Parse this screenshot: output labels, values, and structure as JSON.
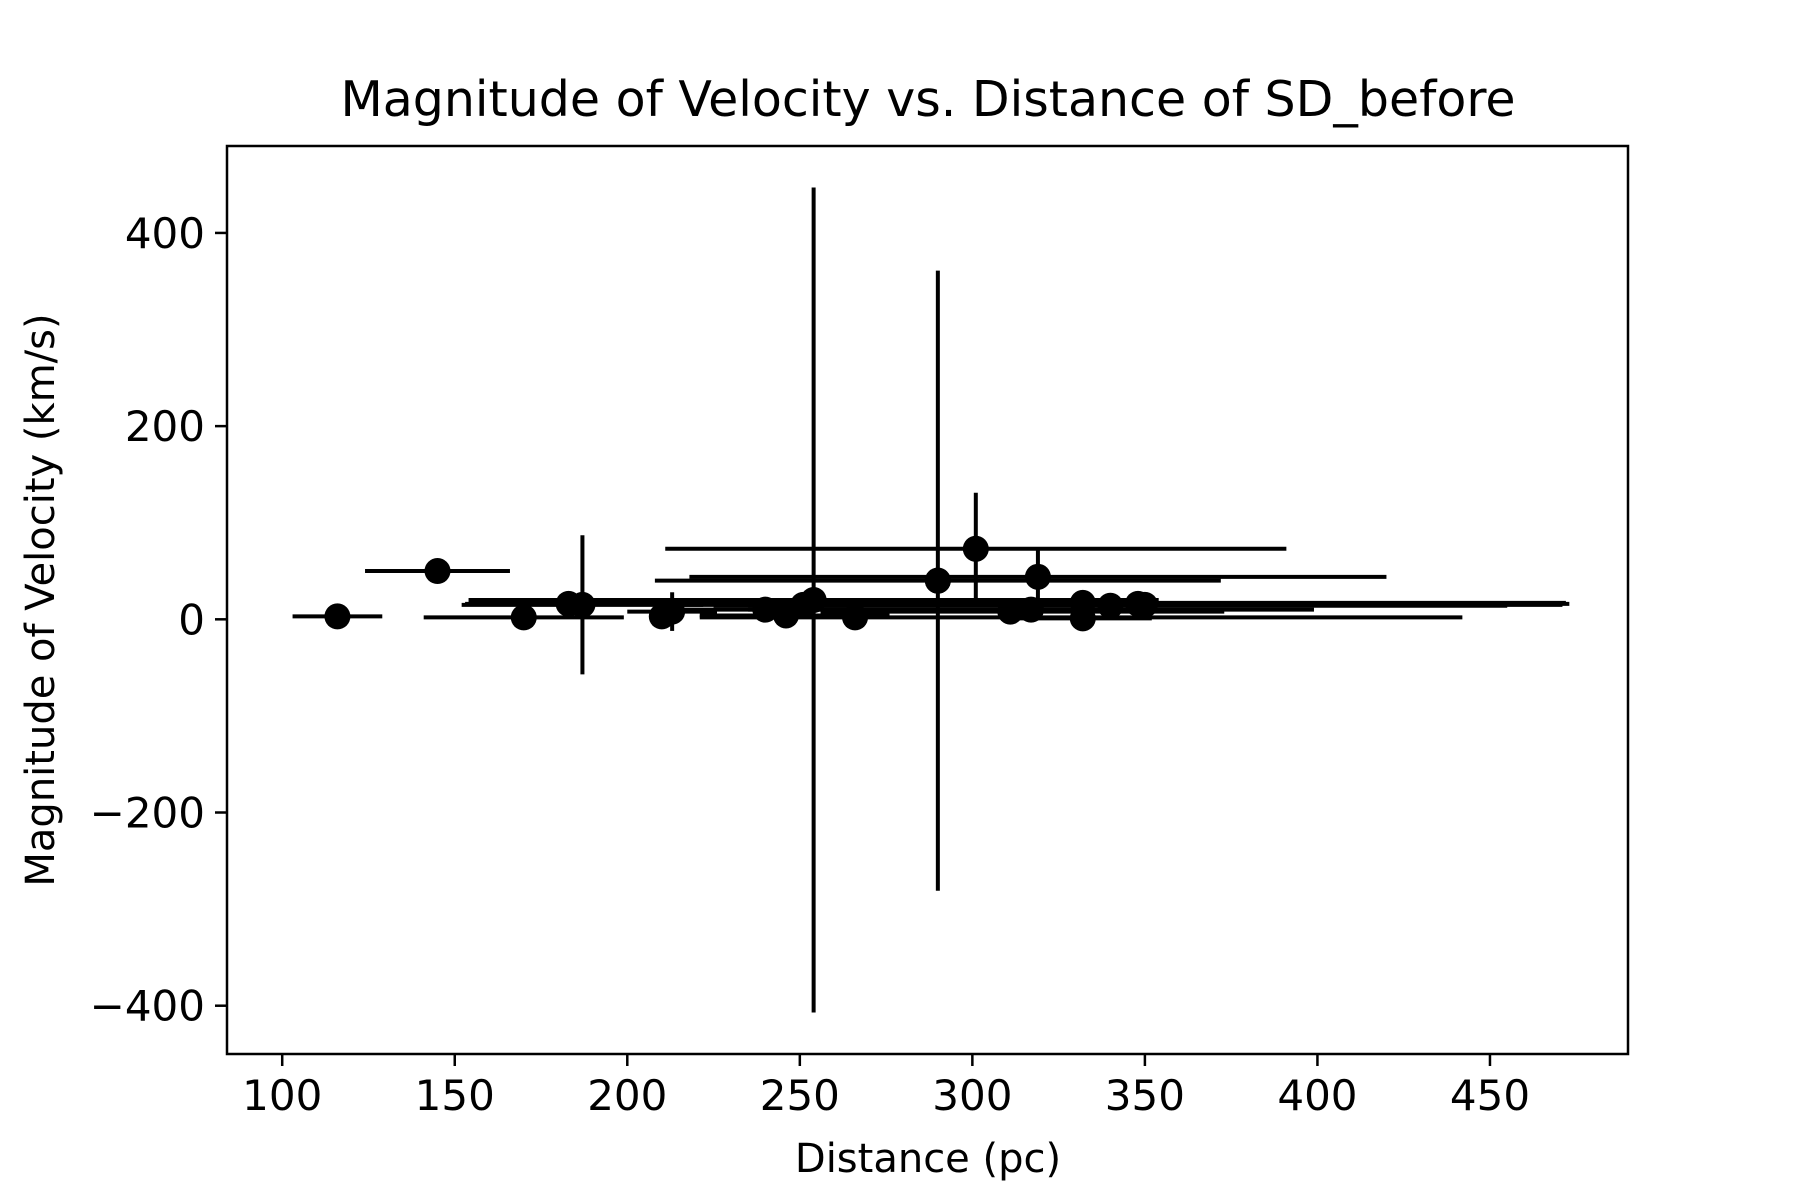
{
  "chart_data": {
    "type": "scatter",
    "title": "Magnitude of Velocity vs. Distance of SD_before",
    "xlabel": "Distance (pc)",
    "ylabel": "Magnitude of Velocity (km/s)",
    "xlim": [
      84,
      490
    ],
    "ylim": [
      -450,
      490
    ],
    "xticks": [
      100,
      150,
      200,
      250,
      300,
      350,
      400,
      450
    ],
    "yticks": [
      -400,
      -200,
      0,
      200,
      400
    ],
    "xtick_labels": [
      "100",
      "150",
      "200",
      "250",
      "300",
      "350",
      "400",
      "450"
    ],
    "ytick_labels": [
      "−400",
      "−200",
      "0",
      "200",
      "400"
    ],
    "grid": false,
    "marker_color": "#000000",
    "points": [
      {
        "x": 116,
        "y": 3,
        "xerr_minus": 13,
        "xerr_plus": 13,
        "yerr": 2
      },
      {
        "x": 145,
        "y": 50,
        "xerr_minus": 21,
        "xerr_plus": 21,
        "yerr": 3
      },
      {
        "x": 170,
        "y": 2,
        "xerr_minus": 29,
        "xerr_plus": 29,
        "yerr": 2
      },
      {
        "x": 183,
        "y": 16,
        "xerr_minus": 30,
        "xerr_plus": 30,
        "yerr": 2
      },
      {
        "x": 187,
        "y": 15,
        "xerr_minus": 35,
        "xerr_plus": 35,
        "yerr": 72
      },
      {
        "x": 210,
        "y": 3,
        "xerr_minus": 0,
        "xerr_plus": 0,
        "yerr": 3
      },
      {
        "x": 213,
        "y": 8,
        "xerr_minus": 13,
        "xerr_plus": 13,
        "yerr": 20
      },
      {
        "x": 240,
        "y": 10,
        "xerr_minus": 25,
        "xerr_plus": 25,
        "yerr": 3
      },
      {
        "x": 246,
        "y": 4,
        "xerr_minus": 25,
        "xerr_plus": 30,
        "yerr": 3
      },
      {
        "x": 251,
        "y": 15,
        "xerr_minus": 40,
        "xerr_plus": 150,
        "yerr": 6
      },
      {
        "x": 254,
        "y": 20,
        "xerr_minus": 100,
        "xerr_plus": 100,
        "yerr": 427
      },
      {
        "x": 266,
        "y": 2,
        "xerr_minus": 45,
        "xerr_plus": 176,
        "yerr": 2
      },
      {
        "x": 290,
        "y": 40,
        "xerr_minus": 82,
        "xerr_plus": 82,
        "yerr": 3
      },
      {
        "x": 290,
        "y": 40,
        "xerr_minus": 0,
        "xerr_plus": 0,
        "yerr": 321
      },
      {
        "x": 301,
        "y": 73,
        "xerr_minus": 90,
        "xerr_plus": 90,
        "yerr": 58
      },
      {
        "x": 311,
        "y": 8,
        "xerr_minus": 55,
        "xerr_plus": 62,
        "yerr": 4
      },
      {
        "x": 317,
        "y": 10,
        "xerr_minus": 82,
        "xerr_plus": 82,
        "yerr": 4
      },
      {
        "x": 319,
        "y": 44,
        "xerr_minus": 101,
        "xerr_plus": 101,
        "yerr": 28
      },
      {
        "x": 332,
        "y": 17,
        "xerr_minus": 140,
        "xerr_plus": 140,
        "yerr": 4
      },
      {
        "x": 332,
        "y": 1,
        "xerr_minus": 20,
        "xerr_plus": 20,
        "yerr": 3
      },
      {
        "x": 340,
        "y": 14,
        "xerr_minus": 115,
        "xerr_plus": 115,
        "yerr": 4
      },
      {
        "x": 348,
        "y": 16,
        "xerr_minus": 125,
        "xerr_plus": 125,
        "yerr": 12
      },
      {
        "x": 350,
        "y": 15,
        "xerr_minus": 100,
        "xerr_plus": 121,
        "yerr": 4
      }
    ]
  }
}
